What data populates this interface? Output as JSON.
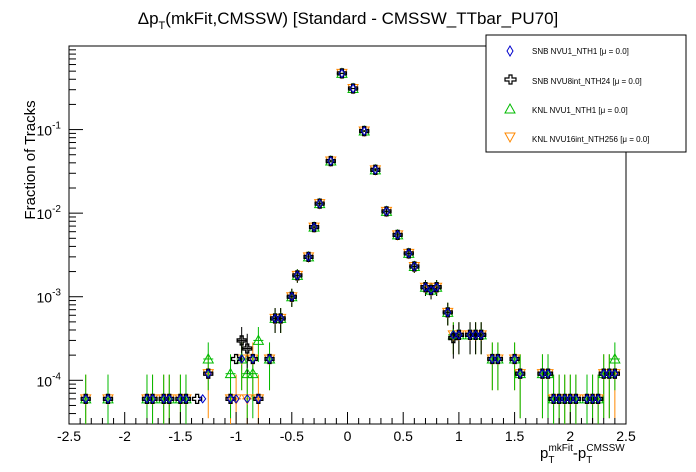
{
  "chart_data": {
    "type": "scatter",
    "title_main": "Δp",
    "title_sub": "T",
    "title_rest": "(mkFit,CMSSW) [Standard - CMSSW_TTbar_PU70]",
    "xlabel": {
      "p1": "p",
      "sub1": "T",
      "sup1": "mkFit",
      "minus": "-",
      "p2": "p",
      "sub2": "T",
      "sup2": "CMSSW"
    },
    "ylabel": "Fraction of Tracks",
    "xlim": [
      -2.5,
      2.5
    ],
    "ylog": true,
    "ylim": [
      3e-05,
      1.0
    ],
    "xticks": [
      -2.5,
      -2,
      -1.5,
      -1,
      -0.5,
      0,
      0.5,
      1,
      1.5,
      2,
      2.5
    ],
    "xtick_labels": [
      "-2.5",
      "-2",
      "-1.5",
      "-1",
      "-0.5",
      "0",
      "0.5",
      "1",
      "1.5",
      "2",
      "2.5"
    ],
    "yticks": [
      0.0001,
      0.001,
      0.01,
      0.1
    ],
    "ytick_labels": [
      {
        "base": "10",
        "exp": "-4"
      },
      {
        "base": "10",
        "exp": "-3"
      },
      {
        "base": "10",
        "exp": "-2"
      },
      {
        "base": "10",
        "exp": "-1"
      }
    ],
    "legend_position": "top-right",
    "series": [
      {
        "name": "SNB NVU1_NTH1 [μ = 0.0]",
        "marker": "diamond",
        "color": "#0000cc",
        "x": [
          -2.35,
          -2.15,
          -1.8,
          -1.75,
          -1.65,
          -1.6,
          -1.5,
          -1.45,
          -1.3,
          -1.25,
          -1.05,
          -1.0,
          -0.95,
          -0.9,
          -0.85,
          -0.8,
          -0.7,
          -0.65,
          -0.6,
          -0.5,
          -0.45,
          -0.35,
          -0.3,
          -0.25,
          -0.15,
          -0.05,
          0.05,
          0.15,
          0.25,
          0.35,
          0.45,
          0.55,
          0.6,
          0.7,
          0.75,
          0.8,
          0.9,
          0.95,
          1.0,
          1.1,
          1.15,
          1.2,
          1.3,
          1.35,
          1.5,
          1.55,
          1.75,
          1.8,
          1.85,
          1.9,
          1.95,
          2.0,
          2.05,
          2.15,
          2.2,
          2.25,
          2.3,
          2.35,
          2.4
        ],
        "y": [
          6e-05,
          6e-05,
          6e-05,
          6e-05,
          6e-05,
          6e-05,
          6e-05,
          6e-05,
          6e-05,
          0.00012,
          6e-05,
          6e-05,
          0.00018,
          6e-05,
          0.00018,
          6e-05,
          0.00018,
          0.00055,
          0.00055,
          0.001,
          0.0018,
          0.003,
          0.0068,
          0.013,
          0.042,
          0.47,
          0.31,
          0.096,
          0.033,
          0.0105,
          0.0055,
          0.0033,
          0.0023,
          0.0013,
          0.0012,
          0.0013,
          0.00065,
          0.00035,
          0.00035,
          0.00035,
          0.00035,
          0.00035,
          0.00018,
          0.00018,
          0.00018,
          0.00012,
          0.00012,
          0.00012,
          6e-05,
          6e-05,
          6e-05,
          6e-05,
          6e-05,
          6e-05,
          6e-05,
          6e-05,
          0.00012,
          0.00012,
          0.00012
        ]
      },
      {
        "name": "SNB NVU8int_NTH24 [μ = 0.0]",
        "marker": "cross",
        "color": "#000000",
        "x": [
          -2.35,
          -2.15,
          -1.8,
          -1.75,
          -1.65,
          -1.6,
          -1.5,
          -1.45,
          -1.35,
          -1.25,
          -1.05,
          -1.0,
          -0.95,
          -0.9,
          -0.85,
          -0.8,
          -0.7,
          -0.65,
          -0.6,
          -0.5,
          -0.45,
          -0.35,
          -0.3,
          -0.25,
          -0.15,
          -0.05,
          0.05,
          0.15,
          0.25,
          0.35,
          0.45,
          0.55,
          0.6,
          0.7,
          0.75,
          0.8,
          0.9,
          0.95,
          1.0,
          1.1,
          1.15,
          1.2,
          1.3,
          1.35,
          1.5,
          1.55,
          1.75,
          1.8,
          1.85,
          1.9,
          1.95,
          2.0,
          2.05,
          2.15,
          2.2,
          2.25,
          2.3,
          2.35,
          2.4
        ],
        "y": [
          6e-05,
          6e-05,
          6e-05,
          6e-05,
          6e-05,
          6e-05,
          6e-05,
          6e-05,
          6e-05,
          0.00012,
          6e-05,
          0.00018,
          0.0003,
          0.00024,
          0.00018,
          6e-05,
          0.00018,
          0.00055,
          0.00055,
          0.001,
          0.0018,
          0.003,
          0.0068,
          0.013,
          0.042,
          0.47,
          0.31,
          0.096,
          0.033,
          0.0105,
          0.0055,
          0.0033,
          0.0023,
          0.0013,
          0.0012,
          0.0013,
          0.00065,
          0.00032,
          0.00035,
          0.00035,
          0.00035,
          0.00035,
          0.00018,
          0.00018,
          0.00018,
          0.00012,
          0.00012,
          0.00012,
          6e-05,
          6e-05,
          6e-05,
          6e-05,
          6e-05,
          6e-05,
          6e-05,
          6e-05,
          0.00012,
          0.00012,
          0.00012
        ]
      },
      {
        "name": "KNL NVU1_NTH1 [μ = 0.0]",
        "marker": "triangle-up",
        "color": "#00bb00",
        "x": [
          -2.35,
          -2.15,
          -1.8,
          -1.75,
          -1.65,
          -1.6,
          -1.5,
          -1.45,
          -1.25,
          -1.05,
          -0.95,
          -0.9,
          -0.85,
          -0.8,
          -0.7,
          -0.65,
          -0.6,
          -0.5,
          -0.45,
          -0.35,
          -0.3,
          -0.25,
          -0.15,
          -0.05,
          0.05,
          0.15,
          0.25,
          0.35,
          0.45,
          0.55,
          0.6,
          0.7,
          0.75,
          0.8,
          0.9,
          0.95,
          1.0,
          1.1,
          1.15,
          1.2,
          1.3,
          1.35,
          1.5,
          1.55,
          1.75,
          1.8,
          1.85,
          1.9,
          1.95,
          2.0,
          2.05,
          2.15,
          2.2,
          2.25,
          2.3,
          2.35,
          2.4
        ],
        "y": [
          6e-05,
          6e-05,
          6e-05,
          6e-05,
          6e-05,
          6e-05,
          6e-05,
          6e-05,
          0.00018,
          0.00012,
          0.00018,
          0.00012,
          0.00012,
          0.0003,
          0.00018,
          0.00055,
          0.00055,
          0.001,
          0.0018,
          0.003,
          0.0068,
          0.013,
          0.042,
          0.47,
          0.31,
          0.096,
          0.033,
          0.0105,
          0.0055,
          0.0033,
          0.0023,
          0.0013,
          0.0012,
          0.0013,
          0.00065,
          0.00035,
          0.00035,
          0.00035,
          0.00035,
          0.00035,
          0.00018,
          0.00018,
          0.00018,
          0.00012,
          0.00012,
          0.00012,
          6e-05,
          6e-05,
          6e-05,
          6e-05,
          6e-05,
          6e-05,
          6e-05,
          6e-05,
          0.00012,
          0.00012,
          0.00018
        ]
      },
      {
        "name": "KNL NVU16int_NTH256 [μ = 0.0]",
        "marker": "triangle-down",
        "color": "#ff8800",
        "x": [
          -2.35,
          -2.15,
          -1.8,
          -1.75,
          -1.65,
          -1.6,
          -1.5,
          -1.45,
          -1.25,
          -1.05,
          -1.0,
          -0.95,
          -0.9,
          -0.85,
          -0.8,
          -0.7,
          -0.65,
          -0.6,
          -0.5,
          -0.45,
          -0.35,
          -0.3,
          -0.25,
          -0.15,
          -0.05,
          0.05,
          0.15,
          0.25,
          0.35,
          0.45,
          0.55,
          0.6,
          0.7,
          0.75,
          0.8,
          0.9,
          0.95,
          1.0,
          1.1,
          1.15,
          1.2,
          1.3,
          1.35,
          1.5,
          1.55,
          1.75,
          1.8,
          1.85,
          1.9,
          1.95,
          2.0,
          2.05,
          2.15,
          2.2,
          2.25,
          2.3,
          2.35,
          2.4
        ],
        "y": [
          6e-05,
          6e-05,
          6e-05,
          6e-05,
          6e-05,
          6e-05,
          6e-05,
          6e-05,
          0.00012,
          6e-05,
          6e-05,
          0.00018,
          6e-05,
          0.00018,
          6e-05,
          0.00018,
          0.00055,
          0.00055,
          0.001,
          0.0018,
          0.003,
          0.0068,
          0.013,
          0.042,
          0.47,
          0.31,
          0.096,
          0.033,
          0.0105,
          0.0055,
          0.0033,
          0.0023,
          0.0013,
          0.0012,
          0.0013,
          0.00065,
          0.00035,
          0.00035,
          0.00035,
          0.00035,
          0.00035,
          0.00018,
          0.00018,
          0.00018,
          0.00012,
          0.00012,
          0.00012,
          6e-05,
          6e-05,
          6e-05,
          6e-05,
          6e-05,
          6e-05,
          6e-05,
          6e-05,
          0.00012,
          0.00012,
          0.00012
        ]
      }
    ]
  }
}
